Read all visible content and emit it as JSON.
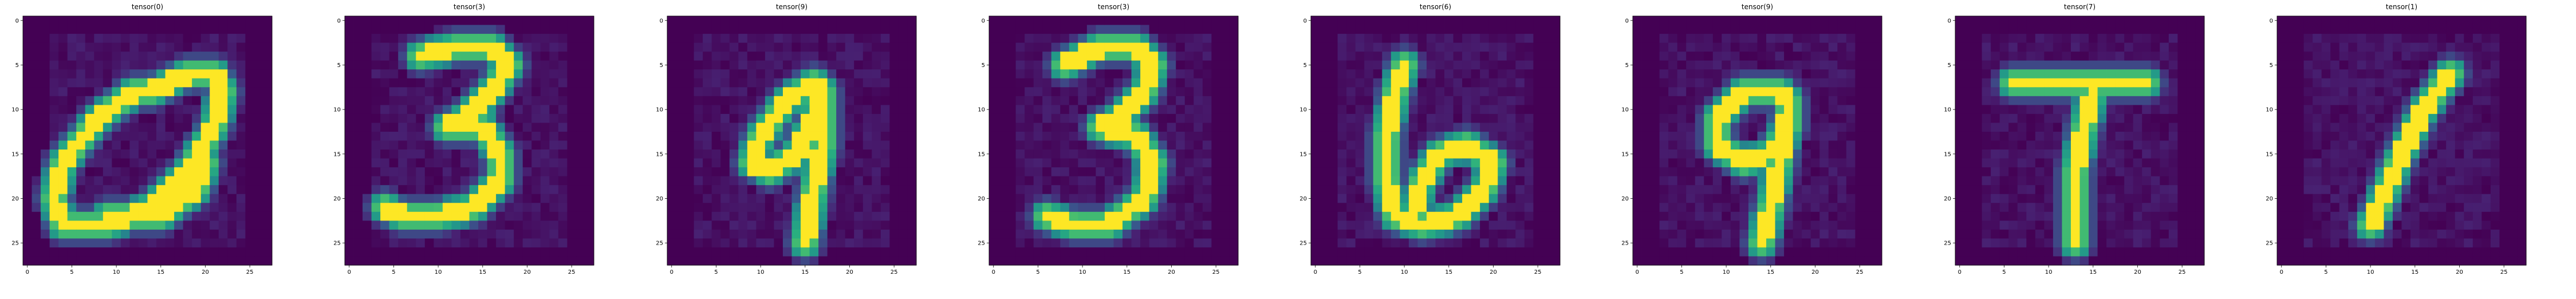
{
  "chart_data": [
    {
      "type": "heatmap",
      "title": "tensor(0)",
      "colormap": "viridis",
      "value_range": [
        0,
        1
      ],
      "xlim": [
        -0.5,
        27.5
      ],
      "ylim": [
        27.5,
        -0.5
      ],
      "y_inverted": true,
      "x_ticks": [
        "0",
        "5",
        "10",
        "15",
        "20",
        "25"
      ],
      "y_ticks": [
        "0",
        "5",
        "10",
        "15",
        "20",
        "25"
      ],
      "grid": false,
      "size": [
        28,
        28
      ],
      "strokes": [
        [
          [
            14,
            8
          ],
          [
            18,
            6
          ],
          [
            21,
            6
          ],
          [
            22,
            8
          ],
          [
            21,
            12
          ],
          [
            18,
            17
          ],
          [
            14,
            21
          ],
          [
            9,
            23
          ],
          [
            4,
            23
          ],
          [
            3,
            20
          ],
          [
            4,
            16
          ],
          [
            8,
            11
          ],
          [
            12,
            8
          ],
          [
            14,
            8
          ]
        ],
        [
          [
            9,
            22
          ],
          [
            15,
            22
          ],
          [
            19,
            19
          ],
          [
            20,
            16
          ]
        ]
      ]
    },
    {
      "type": "heatmap",
      "title": "tensor(3)",
      "colormap": "viridis",
      "value_range": [
        0,
        1
      ],
      "xlim": [
        -0.5,
        27.5
      ],
      "ylim": [
        27.5,
        -0.5
      ],
      "y_inverted": true,
      "x_ticks": [
        "0",
        "5",
        "10",
        "15",
        "20",
        "25"
      ],
      "y_ticks": [
        "0",
        "5",
        "10",
        "15",
        "20",
        "25"
      ],
      "grid": false,
      "size": [
        28,
        28
      ],
      "strokes": [
        [
          [
            8,
            4
          ],
          [
            12,
            3
          ],
          [
            16,
            3
          ],
          [
            18,
            5
          ],
          [
            16,
            8
          ],
          [
            13,
            11
          ],
          [
            11,
            12
          ]
        ],
        [
          [
            11,
            12
          ],
          [
            15,
            12
          ],
          [
            17,
            15
          ],
          [
            17,
            18
          ],
          [
            14,
            21
          ],
          [
            10,
            22
          ],
          [
            6,
            22
          ],
          [
            4,
            21
          ]
        ]
      ]
    },
    {
      "type": "heatmap",
      "title": "tensor(9)",
      "colormap": "viridis",
      "value_range": [
        0,
        1
      ],
      "xlim": [
        -0.5,
        27.5
      ],
      "ylim": [
        27.5,
        -0.5
      ],
      "y_inverted": true,
      "x_ticks": [
        "0",
        "5",
        "10",
        "15",
        "20",
        "25"
      ],
      "y_ticks": [
        "0",
        "5",
        "10",
        "15",
        "20",
        "25"
      ],
      "grid": false,
      "size": [
        28,
        28
      ],
      "strokes": [
        [
          [
            16,
            7
          ],
          [
            13,
            9
          ],
          [
            10,
            13
          ],
          [
            9,
            16
          ],
          [
            11,
            17
          ],
          [
            14,
            15
          ],
          [
            16,
            11
          ],
          [
            17,
            8
          ],
          [
            16,
            7
          ]
        ],
        [
          [
            17,
            8
          ],
          [
            17,
            14
          ],
          [
            16,
            19
          ],
          [
            15,
            25
          ]
        ]
      ]
    },
    {
      "type": "heatmap",
      "title": "tensor(3)",
      "colormap": "viridis",
      "value_range": [
        0,
        1
      ],
      "xlim": [
        -0.5,
        27.5
      ],
      "ylim": [
        27.5,
        -0.5
      ],
      "y_inverted": true,
      "x_ticks": [
        "0",
        "5",
        "10",
        "15",
        "20",
        "25"
      ],
      "y_ticks": [
        "0",
        "5",
        "10",
        "15",
        "20",
        "25"
      ],
      "grid": false,
      "size": [
        28,
        28
      ],
      "strokes": [
        [
          [
            8,
            5
          ],
          [
            12,
            3
          ],
          [
            16,
            3
          ],
          [
            18,
            5
          ],
          [
            17,
            8
          ],
          [
            14,
            11
          ],
          [
            12,
            12
          ]
        ],
        [
          [
            12,
            12
          ],
          [
            16,
            13
          ],
          [
            18,
            16
          ],
          [
            17,
            20
          ],
          [
            13,
            23
          ],
          [
            9,
            23
          ],
          [
            6,
            22
          ]
        ]
      ]
    },
    {
      "type": "heatmap",
      "title": "tensor(6)",
      "colormap": "viridis",
      "value_range": [
        0,
        1
      ],
      "xlim": [
        -0.5,
        27.5
      ],
      "ylim": [
        27.5,
        -0.5
      ],
      "y_inverted": true,
      "x_ticks": [
        "0",
        "5",
        "10",
        "15",
        "20",
        "25"
      ],
      "y_ticks": [
        "0",
        "5",
        "10",
        "15",
        "20",
        "25"
      ],
      "grid": false,
      "size": [
        28,
        28
      ],
      "strokes": [
        [
          [
            10,
            5
          ],
          [
            9,
            8
          ],
          [
            8,
            13
          ],
          [
            8,
            18
          ],
          [
            9,
            22
          ],
          [
            12,
            23
          ],
          [
            16,
            22
          ],
          [
            19,
            19
          ],
          [
            20,
            16
          ],
          [
            17,
            14
          ],
          [
            14,
            15
          ],
          [
            12,
            18
          ],
          [
            11,
            22
          ]
        ]
      ]
    },
    {
      "type": "heatmap",
      "title": "tensor(9)",
      "colormap": "viridis",
      "value_range": [
        0,
        1
      ],
      "xlim": [
        -0.5,
        27.5
      ],
      "ylim": [
        27.5,
        -0.5
      ],
      "y_inverted": true,
      "x_ticks": [
        "0",
        "5",
        "10",
        "15",
        "20",
        "25"
      ],
      "y_ticks": [
        "0",
        "5",
        "10",
        "15",
        "20",
        "25"
      ],
      "grid": false,
      "size": [
        28,
        28
      ],
      "strokes": [
        [
          [
            16,
            8
          ],
          [
            12,
            8
          ],
          [
            9,
            11
          ],
          [
            9,
            14
          ],
          [
            12,
            16
          ],
          [
            15,
            15
          ],
          [
            17,
            12
          ],
          [
            17,
            9
          ],
          [
            16,
            8
          ]
        ],
        [
          [
            17,
            10
          ],
          [
            16,
            16
          ],
          [
            15,
            21
          ],
          [
            14,
            25
          ]
        ]
      ]
    },
    {
      "type": "heatmap",
      "title": "tensor(7)",
      "colormap": "viridis",
      "value_range": [
        0,
        1
      ],
      "xlim": [
        -0.5,
        27.5
      ],
      "ylim": [
        27.5,
        -0.5
      ],
      "y_inverted": true,
      "x_ticks": [
        "0",
        "5",
        "10",
        "15",
        "20",
        "25"
      ],
      "y_ticks": [
        "0",
        "5",
        "10",
        "15",
        "20",
        "25"
      ],
      "grid": false,
      "size": [
        28,
        28
      ],
      "strokes": [
        [
          [
            6,
            7
          ],
          [
            12,
            7
          ],
          [
            18,
            7
          ],
          [
            21,
            7
          ]
        ],
        [
          [
            15,
            8
          ],
          [
            14,
            12
          ],
          [
            13,
            17
          ],
          [
            13,
            21
          ],
          [
            13,
            25
          ]
        ]
      ]
    },
    {
      "type": "heatmap",
      "title": "tensor(1)",
      "colormap": "viridis",
      "value_range": [
        0,
        1
      ],
      "xlim": [
        -0.5,
        27.5
      ],
      "ylim": [
        27.5,
        -0.5
      ],
      "y_inverted": true,
      "x_ticks": [
        "0",
        "5",
        "10",
        "15",
        "20",
        "25"
      ],
      "y_ticks": [
        "0",
        "5",
        "10",
        "15",
        "20",
        "25"
      ],
      "grid": false,
      "size": [
        28,
        28
      ],
      "strokes": [
        [
          [
            19,
            6
          ],
          [
            16,
            10
          ],
          [
            13,
            16
          ],
          [
            11,
            21
          ],
          [
            10,
            23
          ]
        ]
      ]
    }
  ]
}
